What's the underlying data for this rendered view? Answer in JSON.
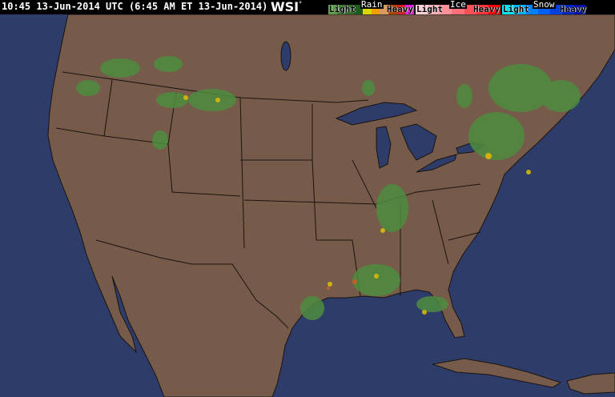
{
  "header": {
    "timestamp": "10:45 13-Jun-2014 UTC (6:45 AM ET 13-Jun-2014)",
    "logo": "WSI",
    "logo_mark": "°"
  },
  "legend": {
    "rain": {
      "title": "Rain",
      "light": "Light",
      "heavy": "Heavy",
      "colors": [
        "#5a9a4a",
        "#3d7a34",
        "#2d6a28",
        "#1e5a1c",
        "#d8d800",
        "#f0a000",
        "#d89a60",
        "#b04000",
        "#d02020",
        "#e020e0"
      ]
    },
    "ice": {
      "title": "Ice",
      "light": "Light",
      "heavy": "Heavy",
      "colors": [
        "#ffd0d8",
        "#ffb0b8",
        "#ff9098",
        "#ff7078",
        "#ff5058",
        "#ff3038",
        "#ff0000"
      ]
    },
    "snow": {
      "title": "Snow",
      "light": "Light",
      "heavy": "Heavy",
      "colors": [
        "#00e0f0",
        "#00b0ff",
        "#0080ff",
        "#0060f0",
        "#0040e0",
        "#0020c0",
        "#0010a0"
      ]
    }
  },
  "map": {
    "ocean_color": "#2e3c6a",
    "land_color": "#765b4b",
    "border_color": "#1a1410"
  }
}
